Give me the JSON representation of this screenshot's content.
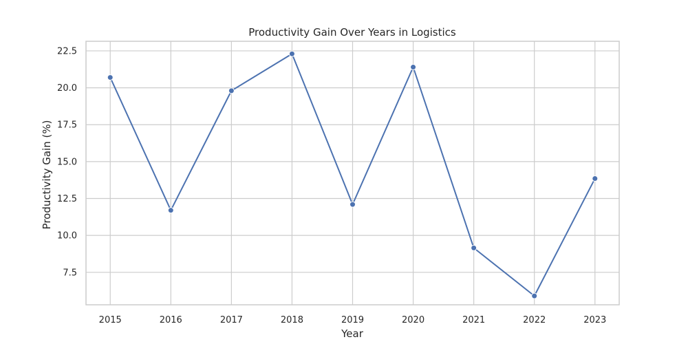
{
  "chart_data": {
    "type": "line",
    "title": "Productivity Gain Over Years in Logistics",
    "xlabel": "Year",
    "ylabel": "Productivity Gain (%)",
    "x": [
      2015,
      2016,
      2017,
      2018,
      2019,
      2020,
      2021,
      2022,
      2023
    ],
    "x_tick_labels": [
      "2015",
      "2016",
      "2017",
      "2018",
      "2019",
      "2020",
      "2021",
      "2022",
      "2023"
    ],
    "series": [
      {
        "values": [
          20.7,
          11.7,
          19.8,
          22.3,
          12.1,
          21.4,
          9.15,
          5.9,
          13.85
        ],
        "color": "#4c72b0",
        "marker": "circle"
      }
    ],
    "xlim": [
      2014.6,
      2023.4
    ],
    "ylim": [
      5.3,
      23.15
    ],
    "y_ticks": [
      7.5,
      10.0,
      12.5,
      15.0,
      17.5,
      20.0,
      22.5
    ],
    "y_tick_labels": [
      "7.5",
      "10.0",
      "12.5",
      "15.0",
      "17.5",
      "20.0",
      "22.5"
    ],
    "grid": true,
    "legend": false
  }
}
